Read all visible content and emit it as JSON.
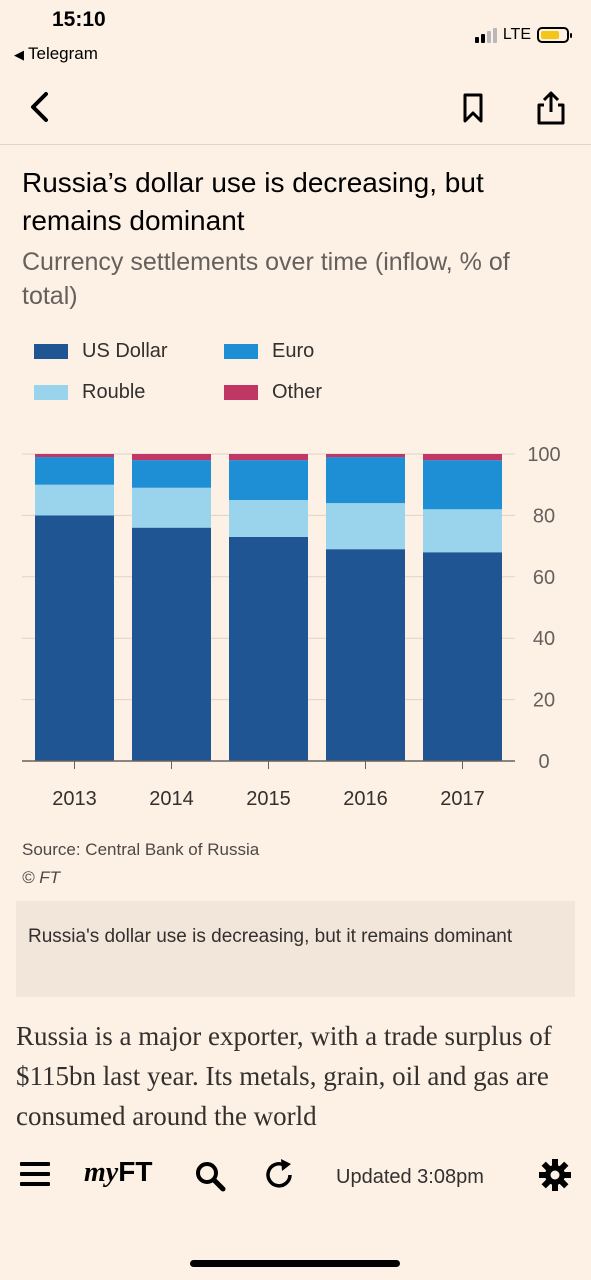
{
  "status_bar": {
    "time": "15:10",
    "back_app": "Telegram",
    "network": "LTE"
  },
  "nav": {
    "icons": [
      "back-chevron-icon",
      "bookmark-icon",
      "share-icon"
    ]
  },
  "article": {
    "chart_title": "Russia’s dollar use is decreasing, but remains dominant",
    "chart_subtitle": "Currency settlements over time (inflow, % of total)",
    "source": "Source: Central Bank of Russia",
    "copyright": "© FT",
    "caption": "Russia's dollar use is decreasing, but it remains dominant",
    "body": "Russia is a major exporter, with a trade surplus of $115bn last year. Its metals, grain, oil and gas are consumed around the world"
  },
  "chart_data": {
    "type": "bar",
    "stacked": true,
    "categories": [
      "2013",
      "2014",
      "2015",
      "2016",
      "2017"
    ],
    "series": [
      {
        "name": "US Dollar",
        "color": "#1f5592",
        "values": [
          80,
          76,
          73,
          69,
          68
        ]
      },
      {
        "name": "Rouble",
        "color": "#99d3ec",
        "values": [
          10,
          13,
          12,
          15,
          14
        ]
      },
      {
        "name": "Euro",
        "color": "#1e8fd5",
        "values": [
          9,
          9,
          13,
          15,
          16
        ]
      },
      {
        "name": "Other",
        "color": "#c03766",
        "values": [
          1,
          2,
          2,
          1,
          2
        ]
      }
    ],
    "legend": [
      "US Dollar",
      "Euro",
      "Rouble",
      "Other"
    ],
    "legend_position": "top-left",
    "ylim": [
      0,
      100
    ],
    "yticks": [
      0,
      20,
      40,
      60,
      80,
      100
    ],
    "y_axis_position": "right",
    "grid": true
  },
  "toolbar": {
    "myft_prefix": "my",
    "myft_suffix": "FT",
    "updated": "Updated 3:08pm"
  }
}
